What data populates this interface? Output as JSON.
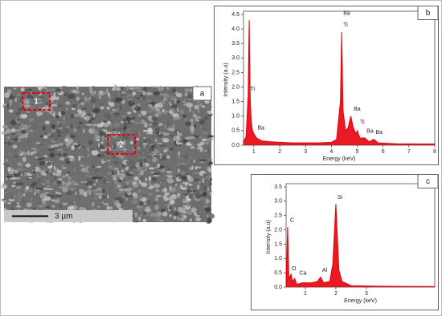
{
  "image_panel": {
    "label": "a",
    "regions": [
      "1",
      "2"
    ],
    "scale_bar": "3 µm"
  },
  "chart_data": [
    {
      "type": "area",
      "panel_label": "b",
      "x_label": "Energy (keV)",
      "y_label": "Intensity (a.u)",
      "xlim": [
        0.6,
        8
      ],
      "ylim": [
        0,
        4.5
      ],
      "xticks": [
        1,
        2,
        3,
        4,
        5,
        6,
        7,
        8
      ],
      "yticks": [
        {
          "value": 0,
          "label": "0.0"
        },
        0.5,
        {
          "value": 1,
          "label": "1.0"
        },
        1.5,
        {
          "value": 2,
          "label": "2.0"
        },
        2.5,
        {
          "value": 3,
          "label": "3.0"
        },
        3.5,
        {
          "value": 4,
          "label": "4.0"
        },
        4.5
      ],
      "series": [
        {
          "color": "#e8000b",
          "x": [
            0.6,
            0.7,
            0.78,
            0.82,
            0.86,
            0.9,
            0.95,
            1.0,
            1.1,
            1.3,
            1.6,
            2.0,
            2.5,
            3.0,
            3.5,
            4.0,
            4.2,
            4.35,
            4.4,
            4.45,
            4.55,
            4.65,
            4.75,
            4.85,
            4.95,
            5.0,
            5.1,
            5.3,
            5.45,
            5.65,
            5.8,
            6.5,
            7.5,
            8.0
          ],
          "values": [
            0.1,
            0.3,
            1.7,
            4.3,
            1.6,
            0.8,
            0.5,
            0.4,
            0.25,
            0.15,
            0.12,
            0.1,
            0.08,
            0.08,
            0.08,
            0.1,
            0.2,
            1.5,
            3.9,
            1.2,
            0.5,
            0.6,
            1.0,
            0.6,
            0.4,
            0.5,
            0.25,
            0.25,
            0.12,
            0.2,
            0.08,
            0.05,
            0.04,
            0.04
          ]
        }
      ],
      "annotations": [
        {
          "text": "Ba",
          "x": 4.4,
          "y": 4.45
        },
        {
          "text": "Ti",
          "x": 4.4,
          "y": 4.05
        },
        {
          "text": "Ti",
          "x": 0.8,
          "y": 1.85
        },
        {
          "text": "Ba",
          "x": 1.08,
          "y": 0.5
        },
        {
          "text": "Ba",
          "x": 4.8,
          "y": 1.15
        },
        {
          "text": "Ti",
          "x": 5.05,
          "y": 0.7
        },
        {
          "text": "Ba",
          "x": 5.3,
          "y": 0.4
        },
        {
          "text": "Ba",
          "x": 5.65,
          "y": 0.35
        }
      ]
    },
    {
      "type": "area",
      "panel_label": "c",
      "x_label": "Energy (keV)",
      "y_label": "Intensity (a.u)",
      "xlim": [
        0.37,
        5.24
      ],
      "ylim": [
        0,
        3.5
      ],
      "xticks": [
        1,
        2,
        3
      ],
      "yticks": [
        {
          "value": 0,
          "label": "0.0"
        },
        0.5,
        {
          "value": 1,
          "label": "1.0"
        },
        1.5,
        {
          "value": 2,
          "label": "2.0"
        },
        2.5,
        {
          "value": 3,
          "label": "3.0"
        },
        3.5
      ],
      "series": [
        {
          "color": "#e8000b",
          "x": [
            0.37,
            0.42,
            0.46,
            0.53,
            0.58,
            0.65,
            0.72,
            0.9,
            1.2,
            1.4,
            1.5,
            1.6,
            1.8,
            1.9,
            2.0,
            2.1,
            2.2,
            2.5,
            3.5,
            5.24
          ],
          "values": [
            0.05,
            2.1,
            0.3,
            0.45,
            0.2,
            0.3,
            0.1,
            0.15,
            0.15,
            0.2,
            0.35,
            0.15,
            0.2,
            0.8,
            2.9,
            0.6,
            0.2,
            0.05,
            0.03,
            0.02
          ]
        }
      ],
      "annotations": [
        {
          "text": "C",
          "x": 0.45,
          "y": 2.25
        },
        {
          "text": "O",
          "x": 0.5,
          "y": 0.55
        },
        {
          "text": "Ca",
          "x": 0.75,
          "y": 0.4
        },
        {
          "text": "Al",
          "x": 1.5,
          "y": 0.5
        },
        {
          "text": "Si",
          "x": 2.0,
          "y": 3.05
        }
      ]
    }
  ]
}
